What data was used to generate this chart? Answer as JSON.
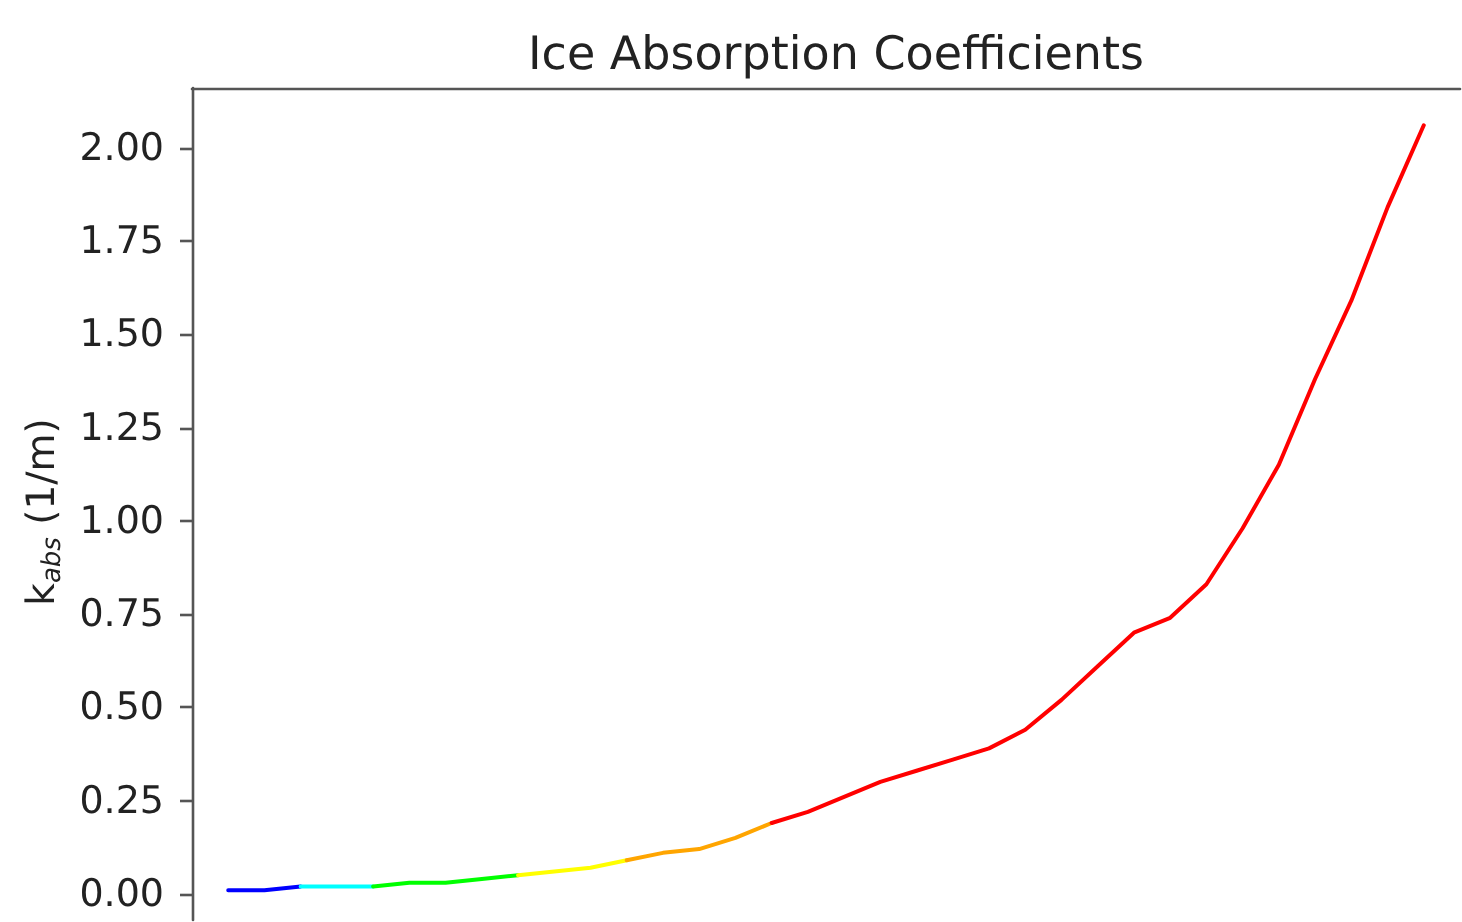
{
  "chart_data": {
    "type": "line",
    "title": "Ice Absorption Coefficients",
    "ylabel": "k$_{abs}$ (1/m)",
    "categories": [
      null,
      null,
      null,
      null,
      null,
      null,
      null,
      null,
      null,
      null,
      null,
      null,
      null,
      null,
      null,
      null,
      null,
      null,
      null,
      null,
      null,
      null,
      null,
      null,
      null,
      null,
      null,
      null,
      null,
      null,
      null,
      null,
      null,
      null
    ],
    "series": [
      {
        "color": "#0000ff",
        "values": [
          0.01,
          0.01,
          0.02,
          null,
          null,
          null,
          null,
          null,
          null,
          null,
          null,
          null,
          null,
          null,
          null,
          null,
          null,
          null,
          null,
          null,
          null,
          null,
          null,
          null,
          null,
          null,
          null,
          null,
          null,
          null,
          null,
          null,
          null,
          null
        ]
      },
      {
        "color": "#00ffff",
        "values": [
          null,
          null,
          0.02,
          0.02,
          0.02,
          null,
          null,
          null,
          null,
          null,
          null,
          null,
          null,
          null,
          null,
          null,
          null,
          null,
          null,
          null,
          null,
          null,
          null,
          null,
          null,
          null,
          null,
          null,
          null,
          null,
          null,
          null,
          null,
          null
        ]
      },
      {
        "color": "#00ff00",
        "values": [
          null,
          null,
          null,
          null,
          0.02,
          0.03,
          0.03,
          0.04,
          0.05,
          null,
          null,
          null,
          null,
          null,
          null,
          null,
          null,
          null,
          null,
          null,
          null,
          null,
          null,
          null,
          null,
          null,
          null,
          null,
          null,
          null,
          null,
          null,
          null,
          null
        ]
      },
      {
        "color": "#ffff00",
        "values": [
          null,
          null,
          null,
          null,
          null,
          null,
          null,
          null,
          0.05,
          0.06,
          0.07,
          0.09,
          null,
          null,
          null,
          null,
          null,
          null,
          null,
          null,
          null,
          null,
          null,
          null,
          null,
          null,
          null,
          null,
          null,
          null,
          null,
          null,
          null,
          null
        ]
      },
      {
        "color": "#ffa500",
        "values": [
          null,
          null,
          null,
          null,
          null,
          null,
          null,
          null,
          null,
          null,
          null,
          0.09,
          0.11,
          0.12,
          0.15,
          0.19,
          null,
          null,
          null,
          null,
          null,
          null,
          null,
          null,
          null,
          null,
          null,
          null,
          null,
          null,
          null,
          null,
          null,
          null
        ]
      },
      {
        "color": "#ff0000",
        "values": [
          null,
          null,
          null,
          null,
          null,
          null,
          null,
          null,
          null,
          null,
          null,
          null,
          null,
          null,
          null,
          0.19,
          0.22,
          0.26,
          0.3,
          0.33,
          0.36,
          0.39,
          0.44,
          0.52,
          0.61,
          0.7,
          0.74,
          0.83,
          0.98,
          1.15,
          1.38,
          1.59,
          1.84,
          2.06
        ]
      }
    ],
    "ylim": [
      -0.07,
      2.16
    ],
    "yticks": [
      {
        "value": 0,
        "label": "0.00"
      },
      {
        "value": 0.25,
        "label": "0.25"
      },
      {
        "value": 0.5,
        "label": "0.50"
      },
      {
        "value": 0.75,
        "label": "0.75"
      },
      {
        "value": 1,
        "label": "1.00"
      },
      {
        "value": 1.25,
        "label": "1.25"
      },
      {
        "value": 1.5,
        "label": "1.50"
      },
      {
        "value": 1.75,
        "label": "1.75"
      },
      {
        "value": 2,
        "label": "2.00"
      }
    ]
  }
}
